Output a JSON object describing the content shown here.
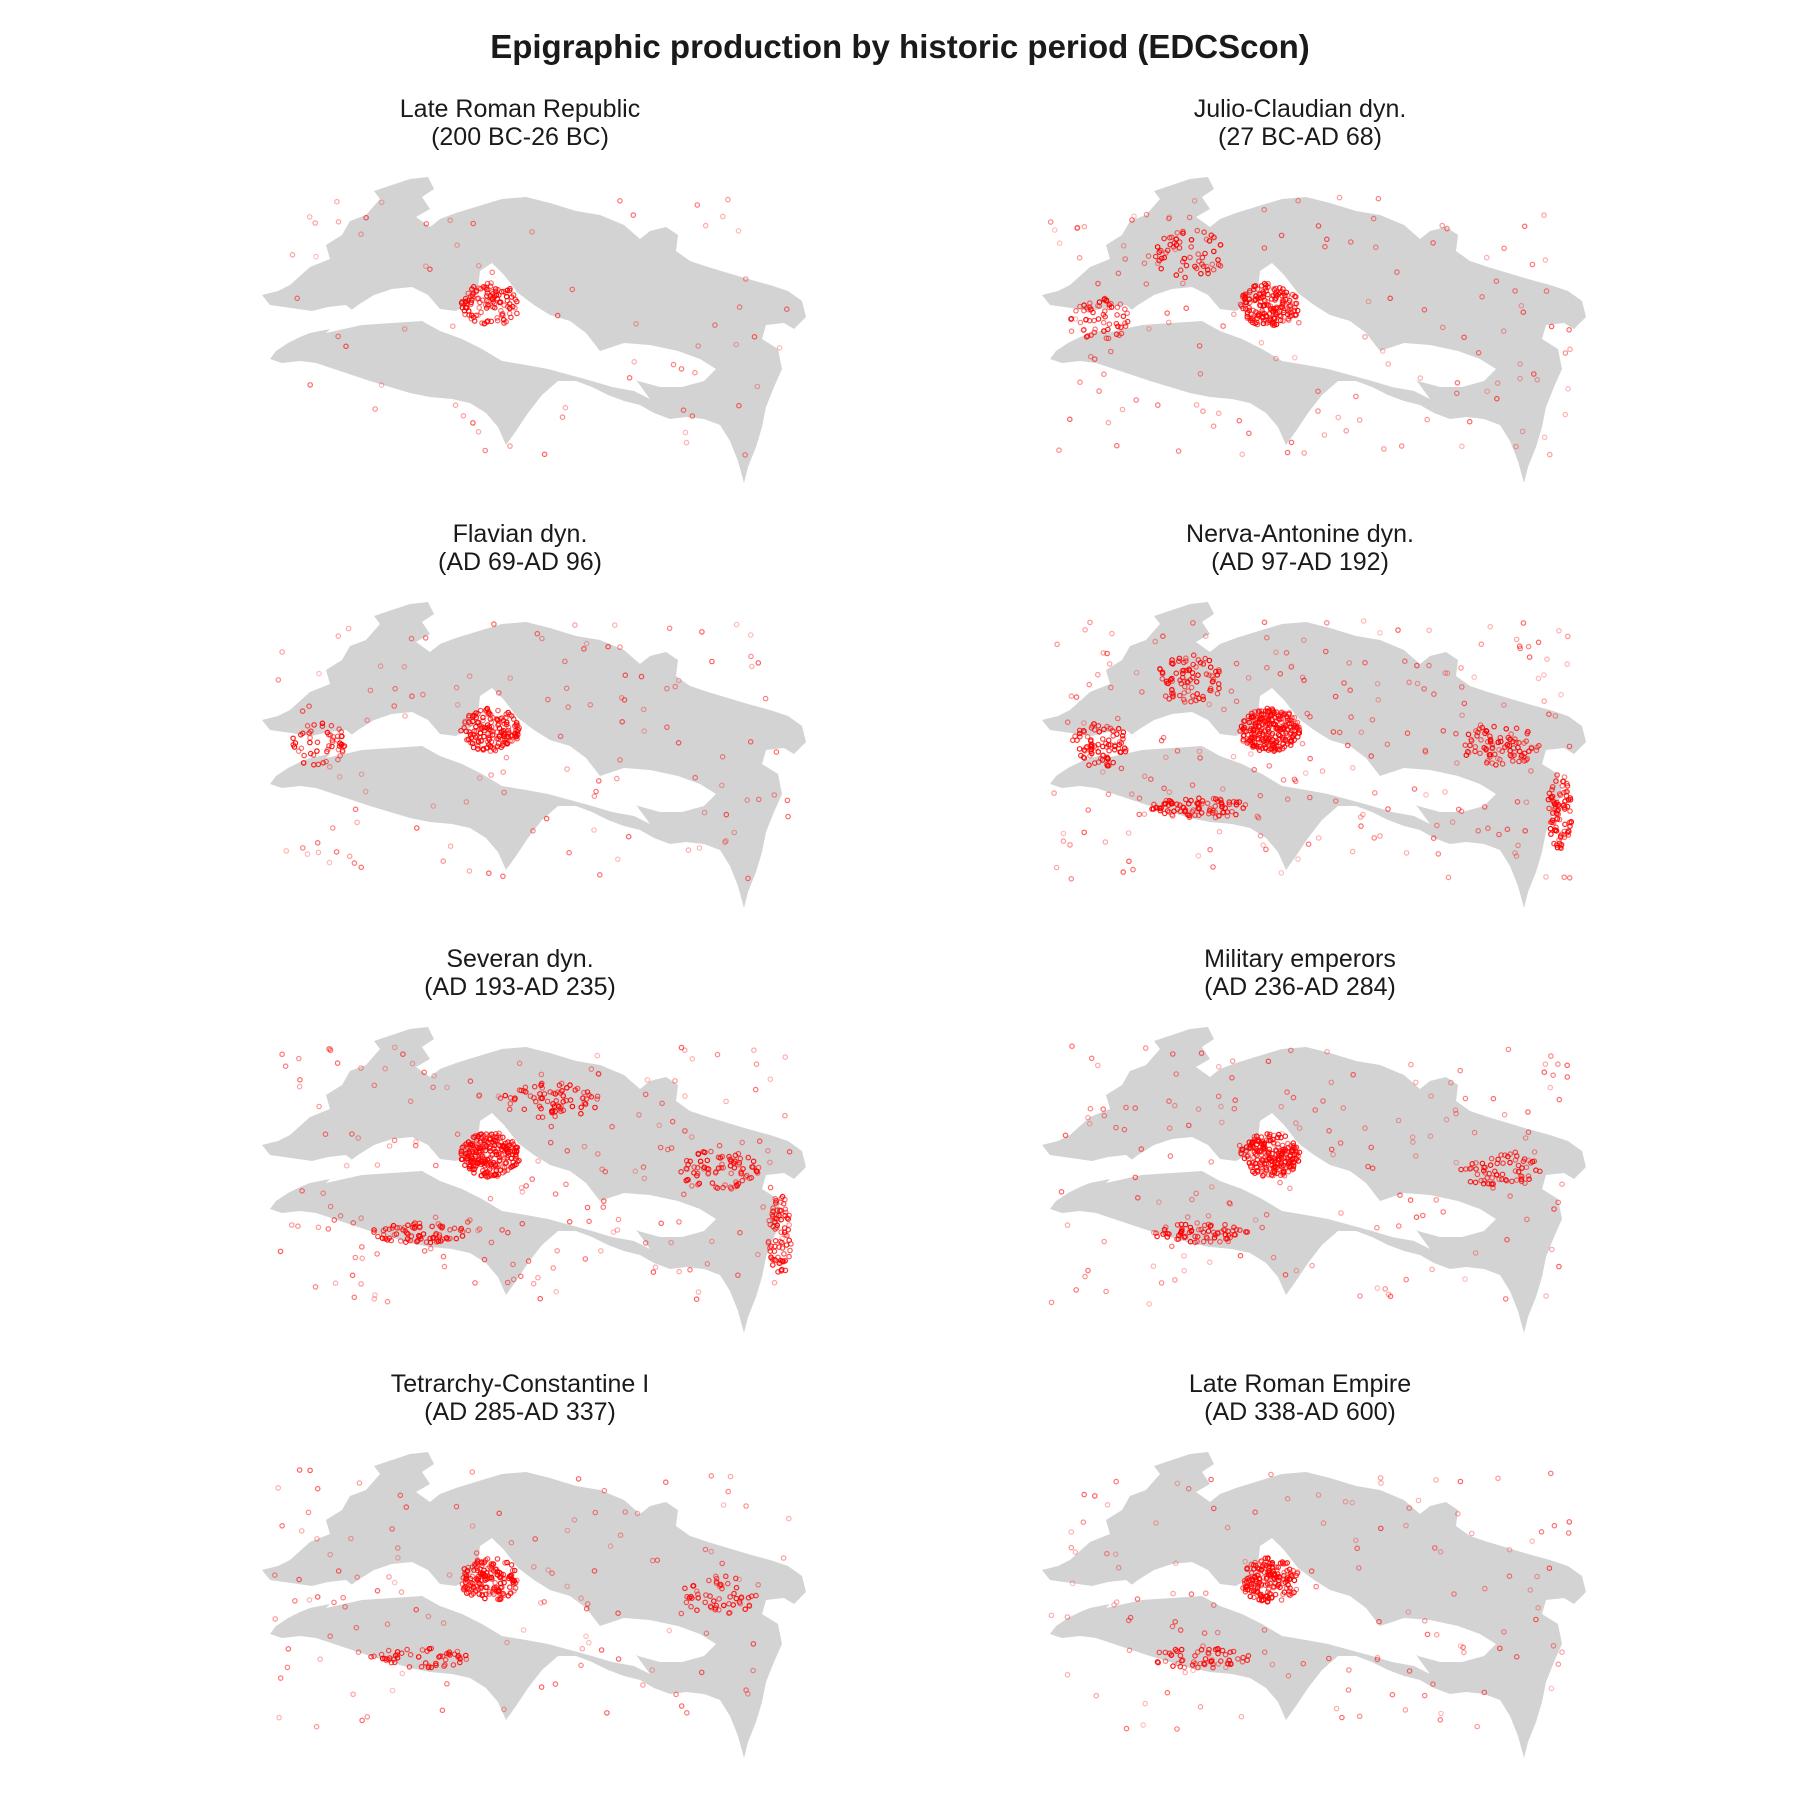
{
  "title": "Epigraphic production by historic period (EDCScon)",
  "colors": {
    "land": "#d3d3d3",
    "points": "#ff0000",
    "background": "#ffffff"
  },
  "panels": [
    {
      "title": "Late Roman Republic",
      "period": "(200 BC-26 BC)",
      "density": 0.15,
      "hotspots": [
        "italy"
      ]
    },
    {
      "title": "Julio-Claudian dyn.",
      "period": "(27 BC-AD 68)",
      "density": 0.55,
      "hotspots": [
        "italy",
        "hispania",
        "gallia"
      ]
    },
    {
      "title": "Flavian dyn.",
      "period": "(AD 69-AD 96)",
      "density": 0.45,
      "hotspots": [
        "italy",
        "hispania"
      ]
    },
    {
      "title": "Nerva-Antonine dyn.",
      "period": "(AD 97-AD 192)",
      "density": 1.0,
      "hotspots": [
        "italy",
        "hispania",
        "gallia",
        "asia",
        "levant",
        "africa"
      ]
    },
    {
      "title": "Severan dyn.",
      "period": "(AD 193-AD 235)",
      "density": 0.85,
      "hotspots": [
        "italy",
        "africa",
        "danube",
        "asia",
        "levant"
      ]
    },
    {
      "title": "Military emperors",
      "period": "(AD 236-AD 284)",
      "density": 0.7,
      "hotspots": [
        "italy",
        "africa",
        "asia"
      ]
    },
    {
      "title": "Tetrarchy-Constantine I",
      "period": "(AD 285-AD 337)",
      "density": 0.45,
      "hotspots": [
        "italy",
        "africa",
        "asia"
      ]
    },
    {
      "title": "Late Roman Empire",
      "period": "(AD 338-AD 600)",
      "density": 0.5,
      "hotspots": [
        "italy",
        "africa"
      ]
    }
  ]
}
